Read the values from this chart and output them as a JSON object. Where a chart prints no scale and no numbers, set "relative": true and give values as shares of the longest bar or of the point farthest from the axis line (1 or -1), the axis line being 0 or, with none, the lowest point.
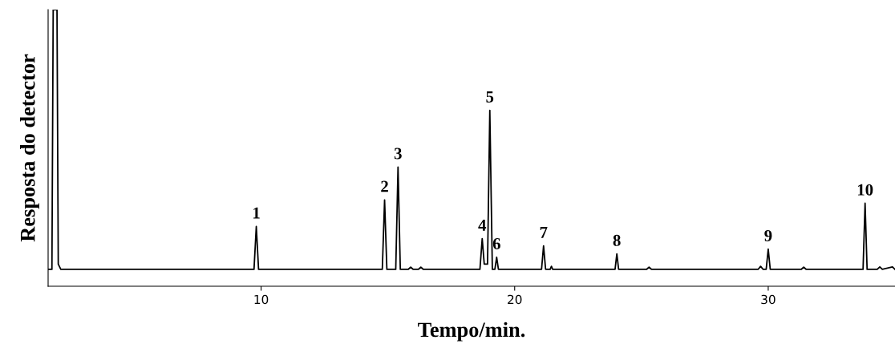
{
  "chart_data": {
    "type": "line",
    "relative": true,
    "xlabel": "Tempo/min.",
    "ylabel": "Resposta do detector",
    "xlim": [
      1.6,
      35
    ],
    "xticks": [
      10,
      20,
      30
    ],
    "tick_labels": "x",
    "grid": false,
    "legend": false,
    "marker": "none",
    "line_style": "solid",
    "series": [
      {
        "color": "#000000",
        "x": [
          1.6,
          1.75,
          1.8,
          1.95,
          2.0,
          2.1,
          9.72,
          9.81,
          9.9,
          14.78,
          14.87,
          14.96,
          15.31,
          15.4,
          15.49,
          15.8,
          15.9,
          16.0,
          16.2,
          16.3,
          16.4,
          18.63,
          18.72,
          18.8,
          18.93,
          19.02,
          19.12,
          19.22,
          19.29,
          19.36,
          21.06,
          21.14,
          21.22,
          21.4,
          21.45,
          21.5,
          23.96,
          24.03,
          24.1,
          25.2,
          25.3,
          25.4,
          29.6,
          29.7,
          29.8,
          29.92,
          30.0,
          30.08,
          31.3,
          31.4,
          31.5,
          33.74,
          33.82,
          33.9,
          34.3,
          34.4,
          34.5,
          34.9,
          35.0
        ],
        "values": [
          0.061,
          0.061,
          1,
          1,
          0.08,
          0.061,
          0.061,
          0.216,
          0.061,
          0.061,
          0.312,
          0.061,
          0.061,
          0.431,
          0.061,
          0.061,
          0.069,
          0.061,
          0.061,
          0.069,
          0.061,
          0.061,
          0.172,
          0.08,
          0.08,
          0.636,
          0.061,
          0.061,
          0.105,
          0.061,
          0.061,
          0.146,
          0.061,
          0.061,
          0.072,
          0.061,
          0.061,
          0.117,
          0.061,
          0.061,
          0.069,
          0.061,
          0.061,
          0.072,
          0.061,
          0.061,
          0.134,
          0.061,
          0.061,
          0.069,
          0.061,
          0.061,
          0.3,
          0.061,
          0.061,
          0.07,
          0.061,
          0.07,
          0.061
        ]
      }
    ],
    "annotations": [
      {
        "text": "1",
        "x": 9.81,
        "y": 0.216
      },
      {
        "text": "2",
        "x": 14.87,
        "y": 0.312
      },
      {
        "text": "3",
        "x": 15.4,
        "y": 0.431
      },
      {
        "text": "4",
        "x": 18.72,
        "y": 0.172
      },
      {
        "text": "5",
        "x": 19.02,
        "y": 0.636
      },
      {
        "text": "6",
        "x": 19.29,
        "y": 0.105
      },
      {
        "text": "7",
        "x": 21.14,
        "y": 0.146
      },
      {
        "text": "8",
        "x": 24.03,
        "y": 0.117
      },
      {
        "text": "9",
        "x": 30.0,
        "y": 0.134
      },
      {
        "text": "10",
        "x": 33.82,
        "y": 0.3
      }
    ]
  }
}
